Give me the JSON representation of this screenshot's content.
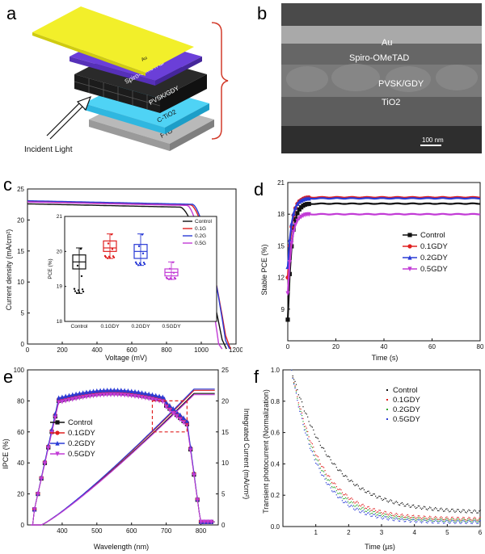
{
  "figure": {
    "panel_letters": [
      "a",
      "b",
      "c",
      "d",
      "e",
      "f"
    ],
    "panel_a": {
      "layers": [
        "Au",
        "Spiro-OMeTAD",
        "PVSK/GDY",
        "C-TiO2",
        "FTO"
      ],
      "incident_label": "Incident Light",
      "colors": {
        "au": "#f2ef2a",
        "spiro": "#6b3fd8",
        "pvsk": "#2a2a2a",
        "tio2": "#4fd3f5",
        "fto": "#b9b9b9",
        "bracket": "#d23a2a"
      }
    },
    "panel_b": {
      "labels": [
        "Au",
        "Spiro-OMeTAD",
        "PVSK/GDY",
        "TiO2"
      ],
      "scale_bar": "100 nm"
    }
  },
  "chart_data": [
    {
      "id": "c",
      "type": "line",
      "xlabel": "Voltage (mV)",
      "ylabel": "Current density (mA/cm²)",
      "xlim": [
        0,
        1200
      ],
      "ylim": [
        0,
        25
      ],
      "xticks": [
        0,
        200,
        400,
        600,
        800,
        1000,
        1200
      ],
      "yticks": [
        0,
        5,
        10,
        15,
        20,
        25
      ],
      "series": [
        {
          "name": "Control",
          "color": "#111111",
          "jsc": 22.6,
          "voc": 1125,
          "knee": 880
        },
        {
          "name": "0.1GDY",
          "color": "#e02020",
          "jsc": 23.0,
          "voc": 1148,
          "knee": 940
        },
        {
          "name": "0.2GDY",
          "color": "#2a3bd6",
          "jsc": 23.1,
          "voc": 1143,
          "knee": 950
        },
        {
          "name": "0.5GDY",
          "color": "#c23bd6",
          "jsc": 22.9,
          "voc": 1100,
          "knee": 920
        }
      ],
      "inset": {
        "type": "box",
        "ylabel": "PCE (%)",
        "ylim": [
          18,
          21
        ],
        "yticks": [
          18,
          19,
          20,
          21
        ],
        "categories": [
          "Control",
          "0.1GDY",
          "0.2GDY",
          "0.5GDY"
        ],
        "legend": [
          "Control",
          "0.1G",
          "0.2G",
          "0.5G"
        ],
        "boxes": [
          {
            "q1": 19.5,
            "median": 19.7,
            "q3": 19.9,
            "min": 18.8,
            "max": 20.1
          },
          {
            "q1": 20.0,
            "median": 20.1,
            "q3": 20.3,
            "min": 19.8,
            "max": 20.5
          },
          {
            "q1": 19.8,
            "median": 20.0,
            "q3": 20.2,
            "min": 19.6,
            "max": 20.5
          },
          {
            "q1": 19.3,
            "median": 19.4,
            "q3": 19.5,
            "min": 19.2,
            "max": 19.7
          }
        ]
      }
    },
    {
      "id": "d",
      "type": "line",
      "xlabel": "Time (s)",
      "ylabel": "Stable PCE (%)",
      "xlim": [
        0,
        80
      ],
      "ylim": [
        6,
        21
      ],
      "xticks": [
        0,
        20,
        40,
        60,
        80
      ],
      "yticks": [
        9,
        12,
        15,
        18,
        21
      ],
      "series": [
        {
          "name": "Control",
          "color": "#111111",
          "marker": "square",
          "start": 8.0,
          "plateau": 19.0
        },
        {
          "name": "0.1GDY",
          "color": "#e02020",
          "marker": "circle",
          "start": 12.0,
          "plateau": 19.6
        },
        {
          "name": "0.2GDY",
          "color": "#2a3bd6",
          "marker": "triangle",
          "start": 13.0,
          "plateau": 19.5
        },
        {
          "name": "0.5GDY",
          "color": "#c23bd6",
          "marker": "triangle-down",
          "start": 10.5,
          "plateau": 18.0
        }
      ]
    },
    {
      "id": "e",
      "type": "line",
      "xlabel": "Wavelength (nm)",
      "ylabel": "IPCE (%)",
      "ylabel_right": "Integrated Current (mA/cm²)",
      "xlim": [
        300,
        850
      ],
      "ylim": [
        0,
        100
      ],
      "ylim_right": [
        0,
        25
      ],
      "xticks": [
        400,
        500,
        600,
        700,
        800
      ],
      "yticks": [
        0,
        20,
        40,
        60,
        80,
        100
      ],
      "yticks_right": [
        0,
        5,
        10,
        15,
        20,
        25
      ],
      "series": [
        {
          "name": "Control",
          "color": "#111111",
          "marker": "square",
          "ipce_peak": 85,
          "integrated_end": 21.2
        },
        {
          "name": "0.1GDY",
          "color": "#e02020",
          "marker": "circle",
          "ipce_peak": 86,
          "integrated_end": 21.7
        },
        {
          "name": "0.2GDY",
          "color": "#2a3bd6",
          "marker": "triangle",
          "ipce_peak": 87,
          "integrated_end": 21.9
        },
        {
          "name": "0.5GDY",
          "color": "#c23bd6",
          "marker": "triangle-down",
          "ipce_peak": 84,
          "integrated_end": 21.0
        }
      ],
      "highlight_box": {
        "x": [
          660,
          760
        ],
        "y": [
          60,
          80
        ]
      }
    },
    {
      "id": "f",
      "type": "scatter",
      "xlabel": "Time (µs)",
      "ylabel": "Transient photocurrent (Normalization)",
      "xlim": [
        0,
        6
      ],
      "ylim": [
        0,
        1.0
      ],
      "xticks": [
        1,
        2,
        3,
        4,
        5,
        6
      ],
      "yticks": [
        0.0,
        0.2,
        0.4,
        0.6,
        0.8,
        1.0
      ],
      "series": [
        {
          "name": "Control",
          "color": "#111111",
          "tau": 1.2,
          "floor": 0.09
        },
        {
          "name": "0.1GDY",
          "color": "#e02020",
          "tau": 0.9,
          "floor": 0.05
        },
        {
          "name": "0.2GDY",
          "color": "#2ea82e",
          "tau": 0.85,
          "floor": 0.04
        },
        {
          "name": "0.5GDY",
          "color": "#2a3bd6",
          "tau": 0.8,
          "floor": 0.03
        }
      ]
    }
  ]
}
